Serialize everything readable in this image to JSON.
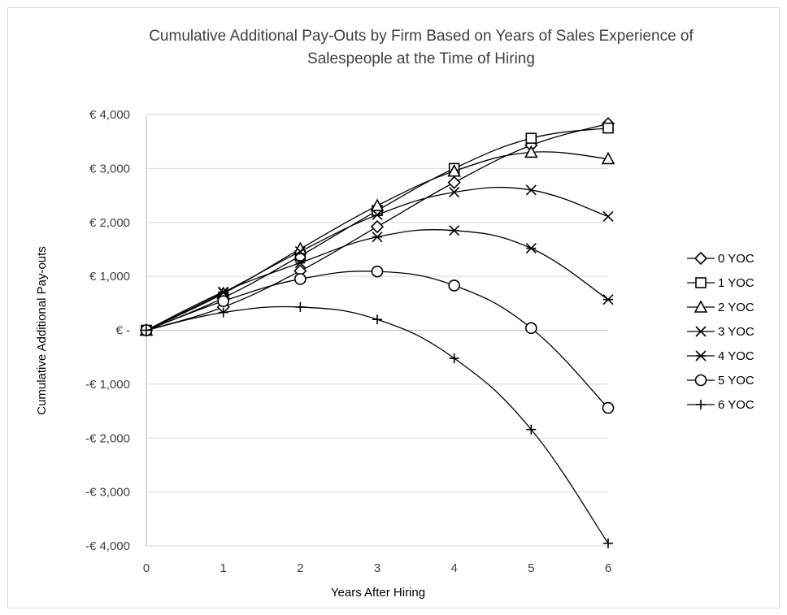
{
  "chart_data": {
    "type": "line",
    "title_line1": "Cumulative Additional Pay-Outs by Firm Based on Years of Sales Experience of",
    "title_line2": "Salespeople at the Time of Hiring",
    "xlabel": "Years After Hiring",
    "ylabel": "Cumulative Additional Pay-outs",
    "x": [
      0,
      1,
      2,
      3,
      4,
      5,
      6
    ],
    "x_tick_labels": [
      "0",
      "1",
      "2",
      "3",
      "4",
      "5",
      "6"
    ],
    "ylim": [
      -4000,
      4000
    ],
    "y_ticks": [
      4000,
      3000,
      2000,
      1000,
      0,
      -1000,
      -2000,
      -3000,
      -4000
    ],
    "y_tick_labels": [
      "€ 4,000",
      "€ 3,000",
      "€ 2,000",
      "€ 1,000",
      "€ -",
      "-€ 1,000",
      "-€ 2,000",
      "-€ 3,000",
      "-€ 4,000"
    ],
    "grid": "horizontal",
    "legend_position": "right",
    "line_color": "#000000",
    "series": [
      {
        "name": "0 YOC",
        "marker": "diamond",
        "values": [
          0,
          430,
          1100,
          1920,
          2740,
          3430,
          3830
        ]
      },
      {
        "name": "1 YOC",
        "marker": "square",
        "values": [
          0,
          600,
          1380,
          2220,
          3000,
          3560,
          3750
        ]
      },
      {
        "name": "2 YOC",
        "marker": "triangle",
        "values": [
          0,
          680,
          1510,
          2310,
          2950,
          3300,
          3180
        ]
      },
      {
        "name": "3 YOC",
        "marker": "x",
        "values": [
          0,
          700,
          1460,
          2140,
          2560,
          2600,
          2110
        ]
      },
      {
        "name": "4 YOC",
        "marker": "asterisk",
        "values": [
          0,
          710,
          1250,
          1730,
          1850,
          1520,
          570
        ]
      },
      {
        "name": "5 YOC",
        "marker": "circle",
        "values": [
          0,
          540,
          950,
          1090,
          830,
          40,
          -1440
        ]
      },
      {
        "name": "6 YOC",
        "marker": "plus",
        "values": [
          0,
          330,
          430,
          200,
          -520,
          -1840,
          -3950
        ]
      }
    ]
  }
}
